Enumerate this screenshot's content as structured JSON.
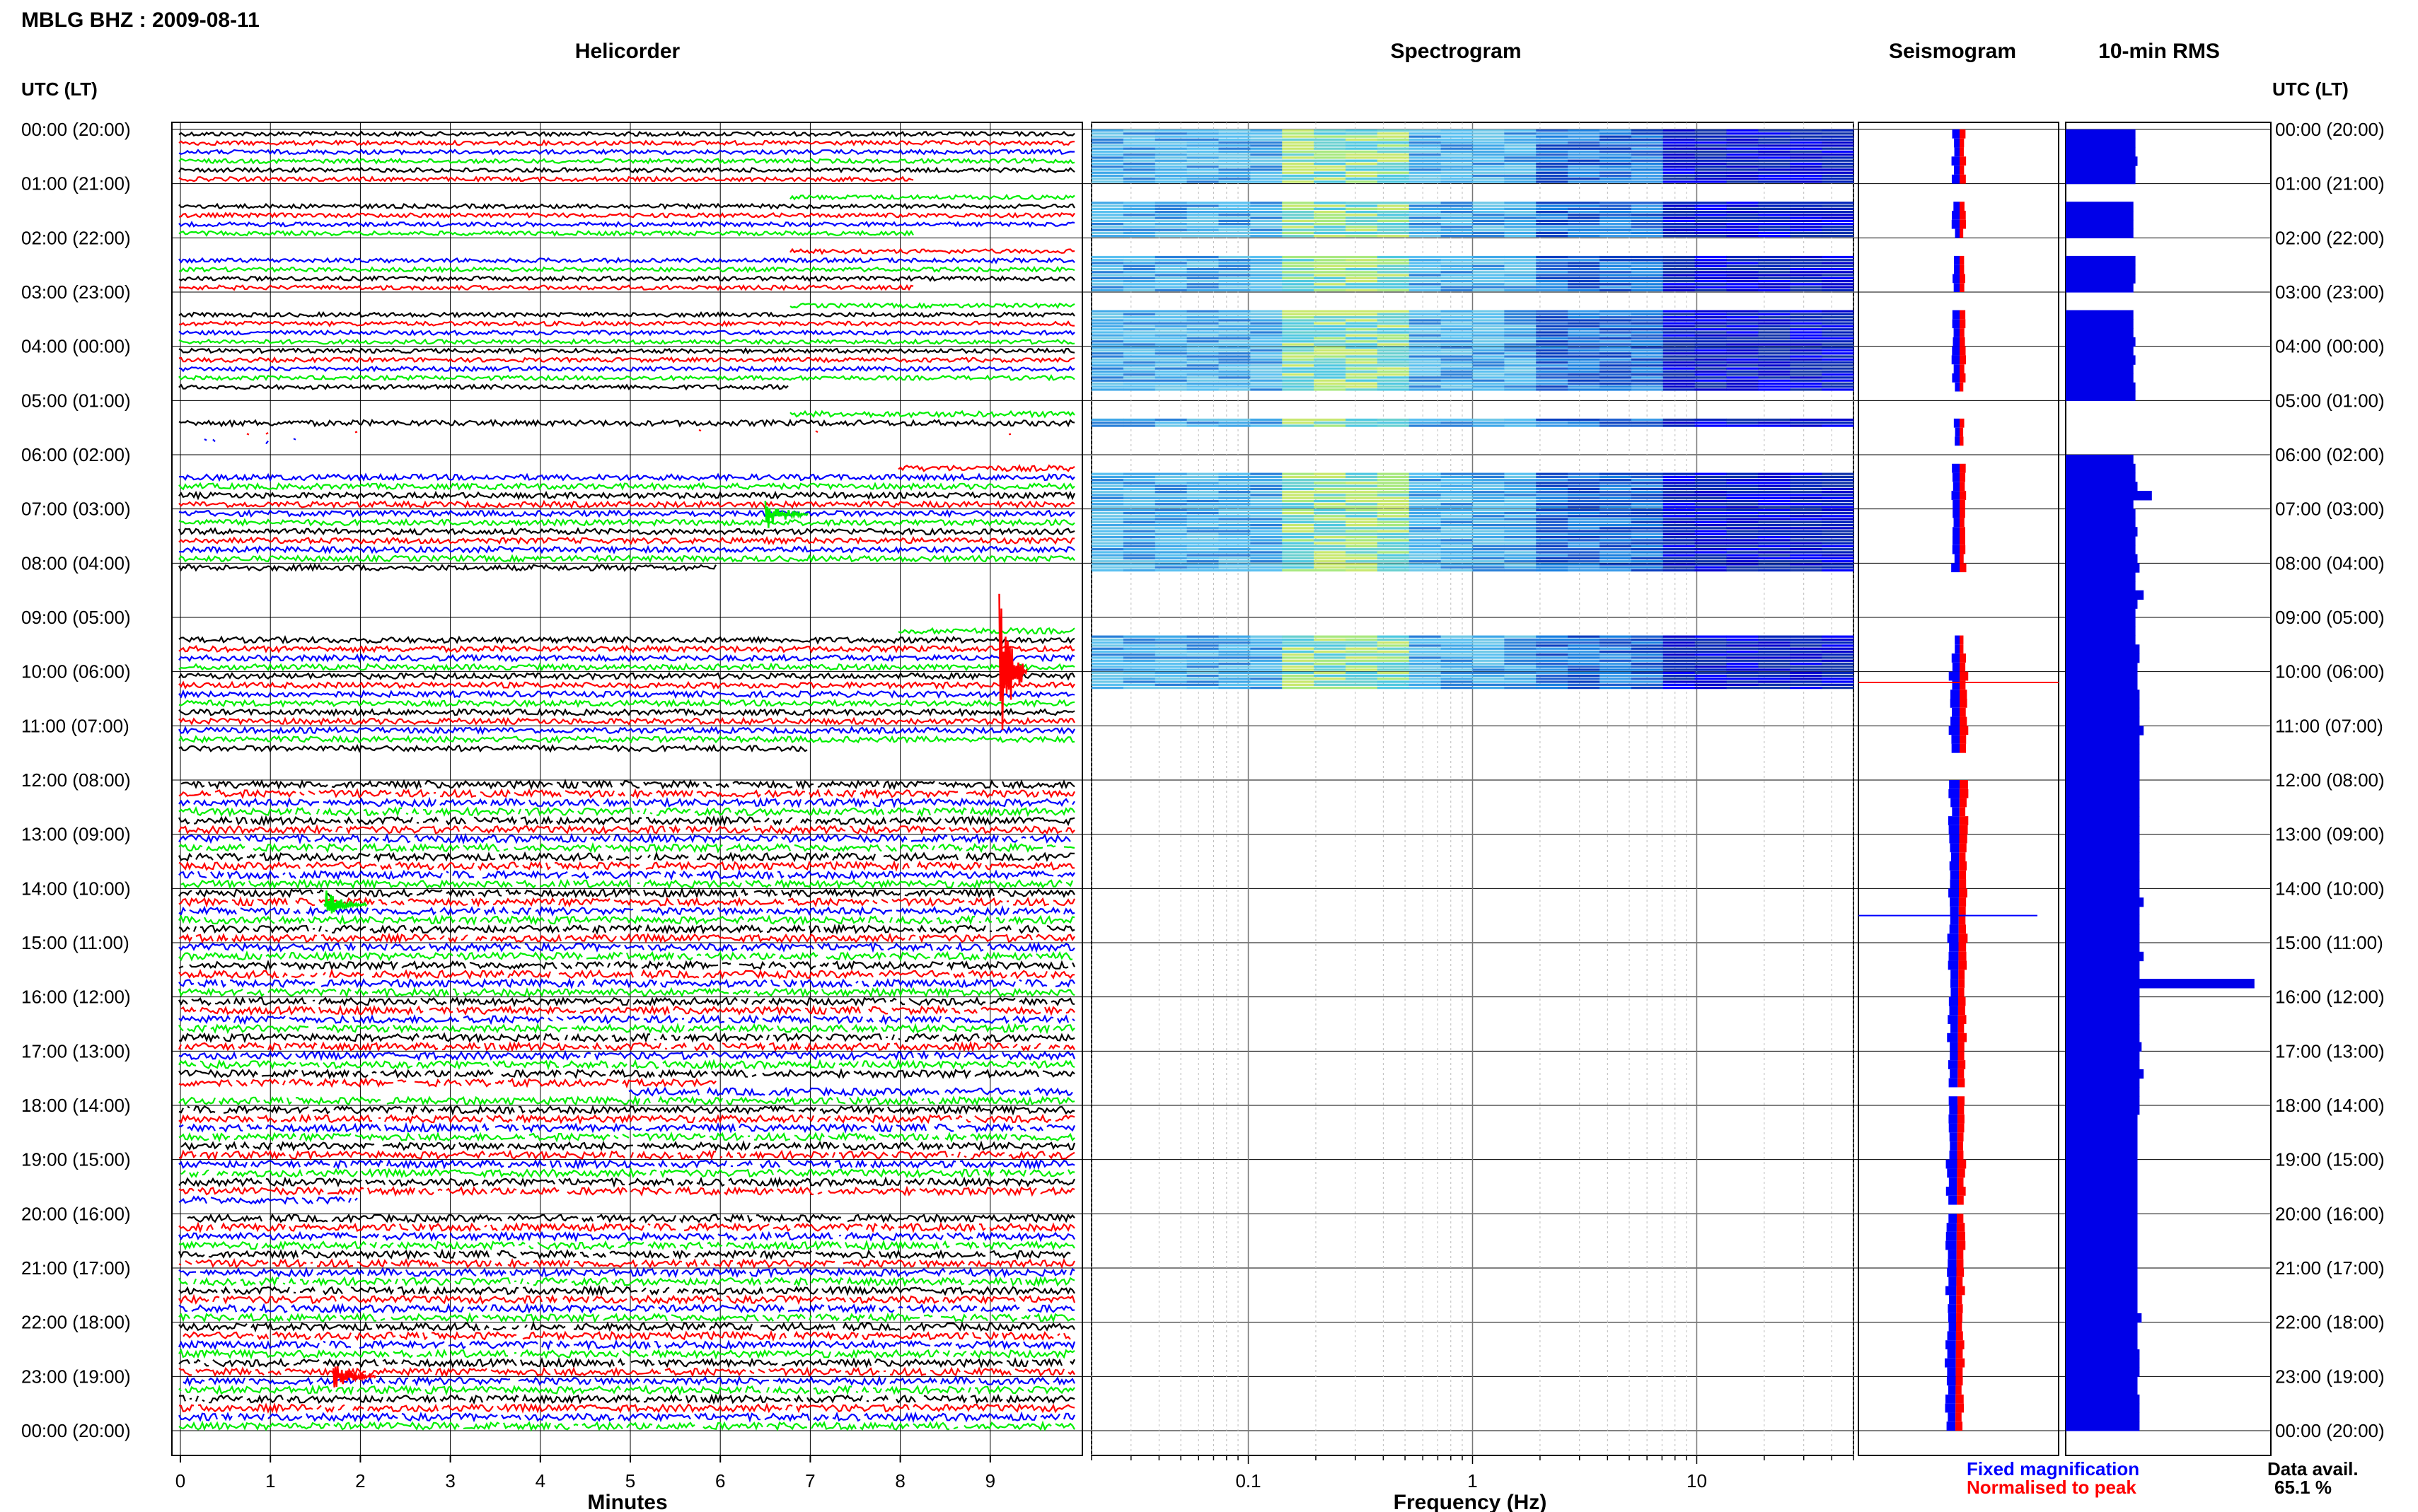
{
  "header": {
    "title": "MBLG BHZ : 2009-08-11",
    "utc_heading_left": "UTC (LT)",
    "utc_heading_right": "UTC (LT)"
  },
  "panels": {
    "helicorder": "Helicorder",
    "spectrogram": "Spectrogram",
    "seismogram": "Seismogram",
    "rms": "10-min RMS"
  },
  "axes": {
    "helicorder_xlabel": "Minutes",
    "spectrogram_xlabel": "Frequency (Hz)",
    "minute_ticks": [
      "0",
      "1",
      "2",
      "3",
      "4",
      "5",
      "6",
      "7",
      "8",
      "9"
    ],
    "freq_ticks": [
      "0.1",
      "1",
      "10"
    ]
  },
  "time_labels": [
    "00:00 (20:00)",
    "01:00 (21:00)",
    "02:00 (22:00)",
    "03:00 (23:00)",
    "04:00 (00:00)",
    "05:00 (01:00)",
    "06:00 (02:00)",
    "07:00 (03:00)",
    "08:00 (04:00)",
    "09:00 (05:00)",
    "10:00 (06:00)",
    "11:00 (07:00)",
    "12:00 (08:00)",
    "13:00 (09:00)",
    "14:00 (10:00)",
    "15:00 (11:00)",
    "16:00 (12:00)",
    "17:00 (13:00)",
    "18:00 (14:00)",
    "19:00 (15:00)",
    "20:00 (16:00)",
    "21:00 (17:00)",
    "22:00 (18:00)",
    "23:00 (19:00)",
    "00:00 (20:00)"
  ],
  "legend": {
    "fixed": "Fixed magnification",
    "normalised": "Normalised to peak",
    "fixed_color": "#0000ff",
    "normalised_color": "#ff0000"
  },
  "availability": {
    "label": "Data avail.",
    "value": "65.1 %"
  },
  "chart_data": {
    "type": "heatmap",
    "trace_colors": [
      "#000000",
      "#ff0000",
      "#0000ff",
      "#00ee00"
    ],
    "helicorder_minutes_range": [
      0,
      10
    ],
    "frequency_range_hz": [
      0.02,
      50
    ],
    "frequency_scale": "log",
    "gaps_hours": [
      [
        0.97,
        1.28
      ],
      [
        1.97,
        2.28
      ],
      [
        2.97,
        3.28
      ],
      [
        4.78,
        5.28
      ],
      [
        5.78,
        6.28
      ],
      [
        8.1,
        8.5
      ],
      [
        8.5,
        9.3
      ],
      [
        11.45,
        12.0
      ],
      [
        17.6,
        17.75
      ],
      [
        19.7,
        20.0
      ]
    ],
    "spectrogram_coverage_hours": [
      [
        0.0,
        1.0
      ],
      [
        1.3,
        2.0
      ],
      [
        2.3,
        3.0
      ],
      [
        3.3,
        4.8
      ],
      [
        5.3,
        5.5
      ],
      [
        6.3,
        8.1
      ],
      [
        9.2,
        10.3
      ]
    ],
    "rms_per_10min_relative": [
      0.34,
      0.34,
      0.34,
      0.35,
      0.34,
      0.34,
      0,
      0,
      0.33,
      0.33,
      0.33,
      0.33,
      0,
      0,
      0.34,
      0.34,
      0.34,
      0.33,
      0,
      0,
      0.33,
      0.33,
      0.33,
      0.34,
      0.33,
      0.34,
      0.33,
      0.33,
      0.34,
      0.34,
      0,
      0,
      0,
      0,
      0,
      0,
      0.33,
      0.34,
      0.34,
      0.35,
      0.42,
      0.33,
      0.34,
      0.34,
      0.35,
      0.34,
      0.34,
      0.35,
      0.36,
      0.34,
      0.34,
      0.38,
      0.35,
      0.34,
      0.34,
      0.34,
      0.34,
      0.36,
      0.36,
      0.35,
      0.35,
      0.35,
      0.36,
      0.36,
      0.36,
      0.36,
      0.38,
      0.36,
      0.36,
      0.36,
      0.36,
      0.36,
      0.36,
      0.36,
      0.36,
      0.36,
      0.36,
      0.36,
      0.36,
      0.36,
      0.36,
      0.36,
      0.36,
      0.36,
      0.36,
      0.38,
      0.36,
      0.36,
      0.36,
      0.36,
      0.36,
      0.38,
      0.36,
      0.36,
      0.92,
      0.36,
      0.36,
      0.36,
      0.36,
      0.36,
      0.36,
      0.37,
      0.36,
      0.36,
      0.38,
      0.36,
      0.36,
      0.36,
      0.36,
      0.35,
      0.35,
      0.35,
      0.35,
      0.35,
      0.35,
      0.35,
      0.35,
      0.35,
      0.35,
      0.35,
      0.35,
      0.35,
      0.35,
      0.35,
      0.35,
      0.35,
      0.35,
      0.35,
      0.35,
      0.35,
      0.35,
      0.37,
      0.35,
      0.35,
      0.35,
      0.36,
      0.36,
      0.36,
      0.35,
      0.35,
      0.36,
      0.36,
      0.36,
      0.36
    ],
    "events": [
      {
        "hour": 10.0,
        "minute": 9.1,
        "color": "#ff0000"
      },
      {
        "hour": 14.3,
        "minute": 1.6,
        "color": "#00ee00"
      },
      {
        "hour": 7.1,
        "minute": 6.5,
        "color": "#00ee00"
      },
      {
        "hour": 23.0,
        "minute": 1.7,
        "color": "#ff0000"
      }
    ]
  }
}
